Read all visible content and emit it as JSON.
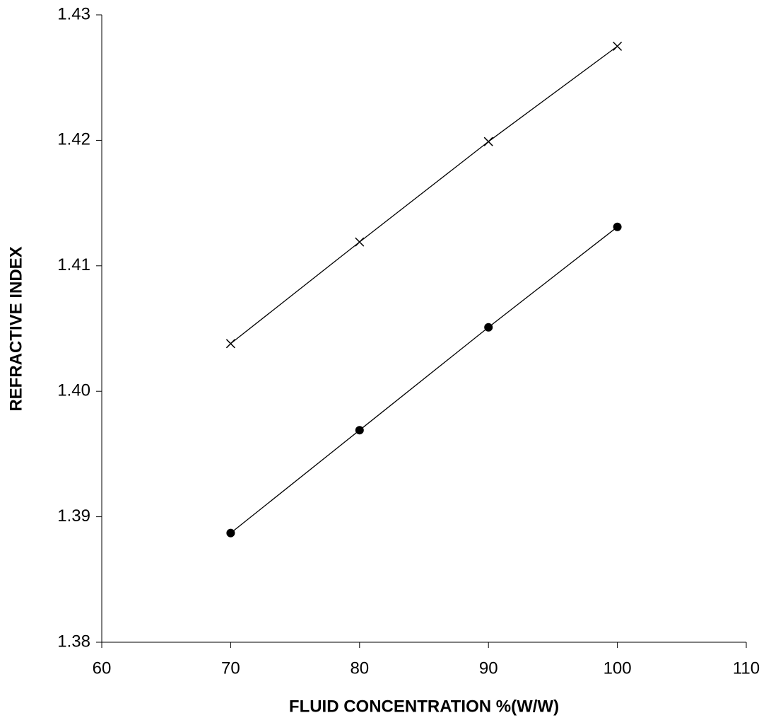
{
  "chart_data": {
    "type": "line",
    "x_label": "FLUID CONCENTRATION %(W/W)",
    "y_label": "REFRACTIVE INDEX",
    "xlim": [
      60,
      110
    ],
    "xticks": [
      60,
      70,
      80,
      90,
      100,
      110
    ],
    "ylim": [
      1.38,
      1.43
    ],
    "yticks": [
      1.38,
      1.39,
      {
        "value": 1.4,
        "label": "1.40"
      },
      1.41,
      1.42,
      1.43
    ],
    "grid": false,
    "series": [
      {
        "color": "#000000",
        "marker": "x",
        "x": [
          70,
          80,
          90,
          100
        ],
        "values": [
          1.4038,
          1.4119,
          1.4199,
          1.4275
        ]
      },
      {
        "color": "#000000",
        "marker": "circle",
        "x": [
          70,
          80,
          90,
          100
        ],
        "values": [
          1.3887,
          1.3969,
          1.4051,
          1.4131
        ]
      }
    ]
  }
}
